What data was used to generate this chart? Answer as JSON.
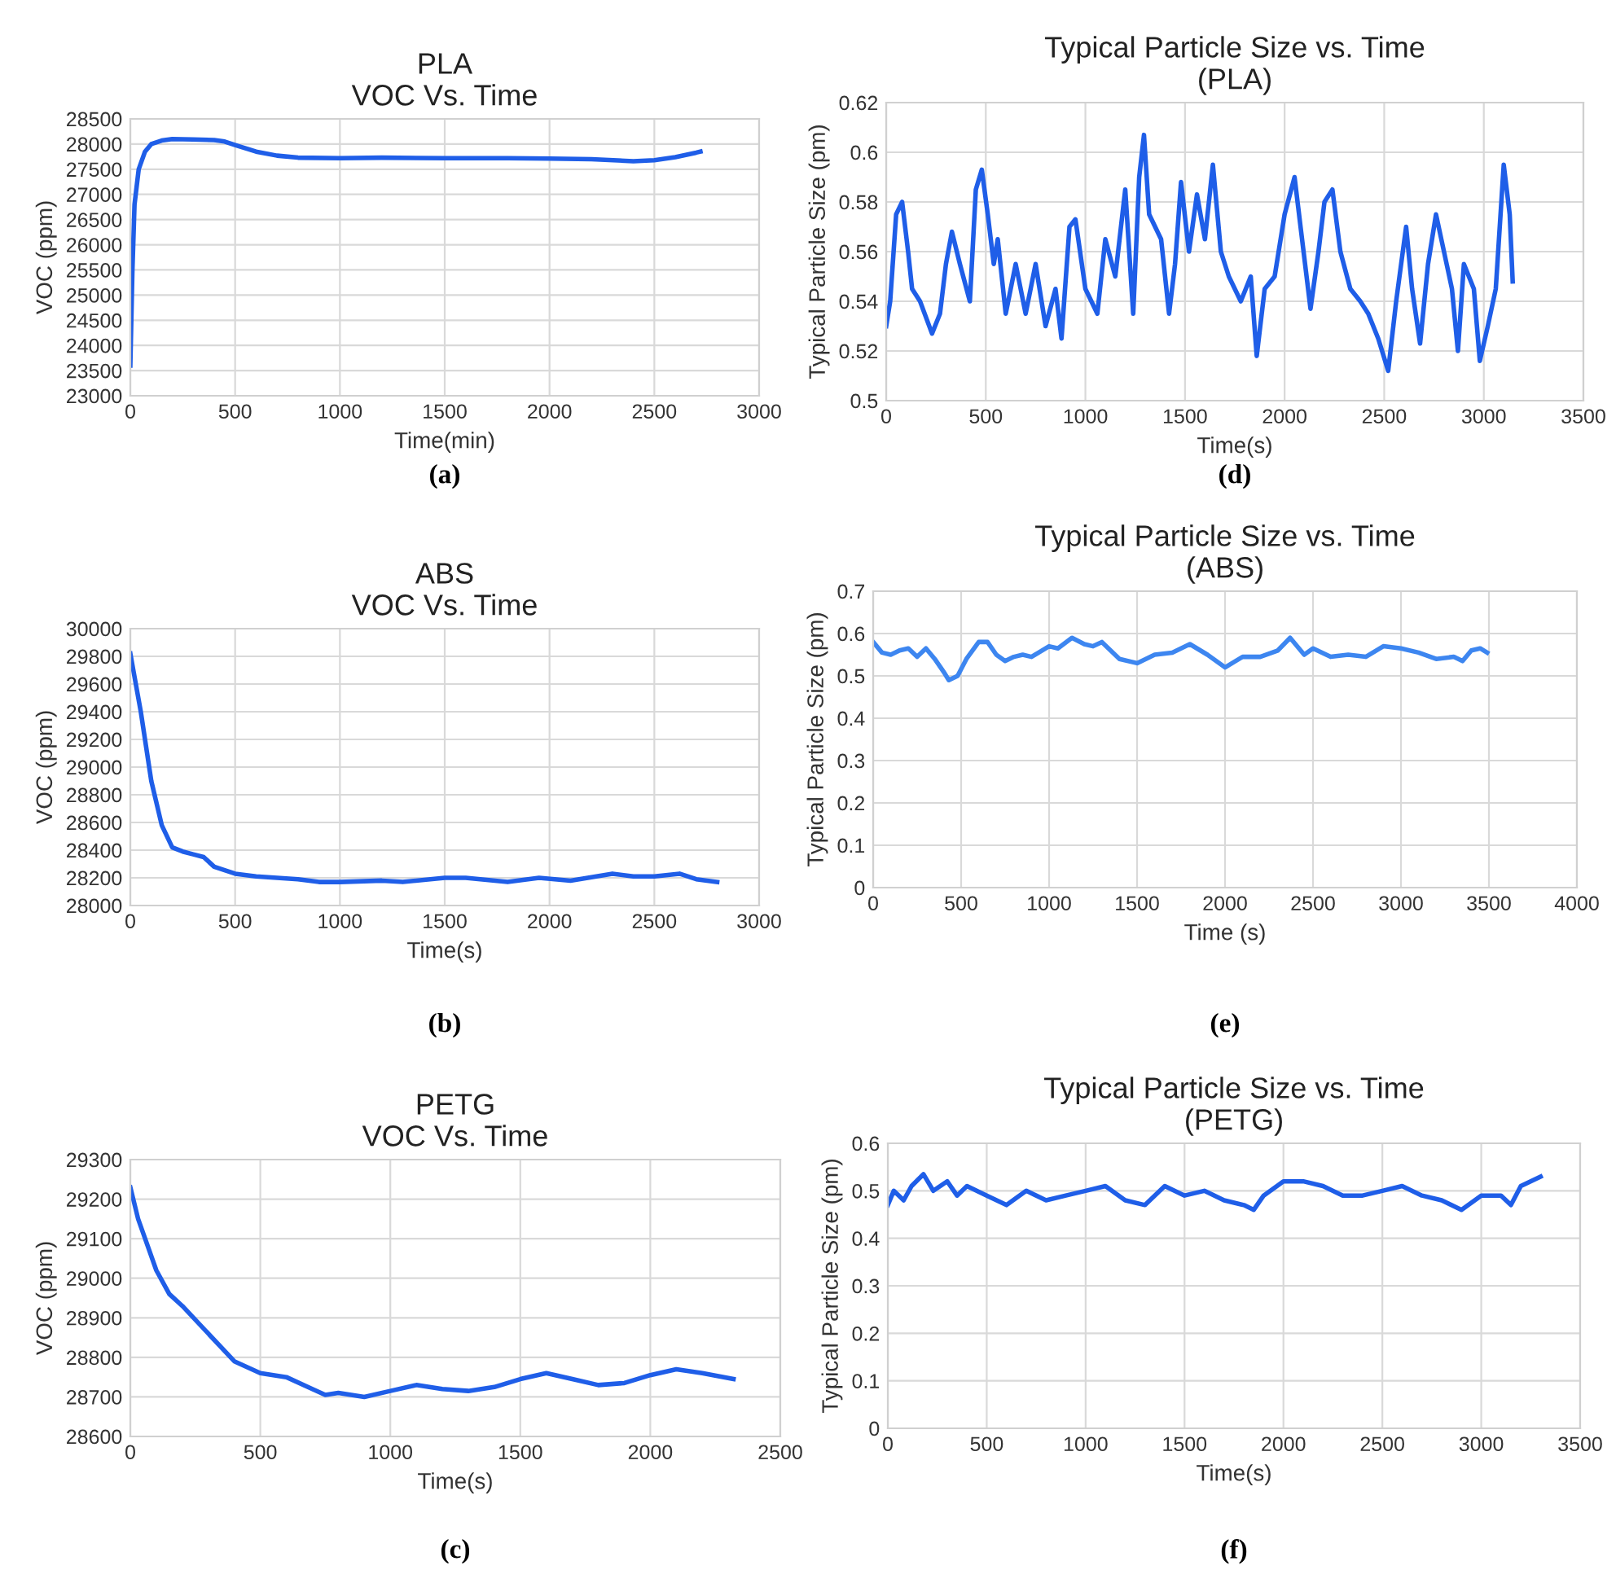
{
  "chart_data": [
    {
      "type": "line",
      "title": "PLA\nVOC Vs. Time",
      "xlabel": "Time(min)",
      "ylabel": "VOC (ppm)",
      "annotations": [
        "(a)"
      ],
      "grid": true,
      "legend": false,
      "marker": "none",
      "line_style": "solid",
      "xlim": [
        0,
        3000
      ],
      "xticks": [
        0,
        500,
        1000,
        1500,
        2000,
        2500,
        3000
      ],
      "ylim": [
        23000,
        28500
      ],
      "yticks": [
        23000,
        23500,
        24000,
        24500,
        25000,
        25500,
        26000,
        26500,
        27000,
        27500,
        28000,
        28500
      ],
      "series": [
        {
          "color": "#1f5ee8",
          "x": [
            0,
            10,
            20,
            40,
            70,
            100,
            150,
            200,
            300,
            400,
            450,
            500,
            600,
            700,
            800,
            1000,
            1200,
            1500,
            1800,
            2000,
            2200,
            2400,
            2500,
            2600,
            2700,
            2720
          ],
          "values": [
            23600,
            25500,
            26800,
            27500,
            27850,
            28000,
            28070,
            28100,
            28090,
            28080,
            28050,
            27980,
            27850,
            27770,
            27730,
            27720,
            27730,
            27720,
            27720,
            27710,
            27700,
            27660,
            27680,
            27740,
            27830,
            27850
          ]
        }
      ]
    },
    {
      "type": "line",
      "title": "Typical Particle Size vs. Time\n(PLA)",
      "xlabel": "Time(s)",
      "ylabel": "Typical Particle Size (pm)",
      "annotations": [
        "(d)"
      ],
      "grid": true,
      "legend": false,
      "marker": "none",
      "line_style": "solid",
      "xlim": [
        0,
        3500
      ],
      "xticks": [
        0,
        500,
        1000,
        1500,
        2000,
        2500,
        3000,
        3500
      ],
      "ylim": [
        0.5,
        0.62
      ],
      "yticks": [
        0.5,
        0.52,
        0.54,
        0.56,
        0.58,
        0.6,
        0.62
      ],
      "series": [
        {
          "color": "#1f5ee8",
          "x": [
            0,
            20,
            50,
            80,
            110,
            130,
            170,
            230,
            270,
            300,
            330,
            370,
            420,
            450,
            480,
            510,
            540,
            560,
            600,
            650,
            700,
            750,
            800,
            850,
            880,
            920,
            950,
            1000,
            1030,
            1060,
            1100,
            1150,
            1200,
            1240,
            1270,
            1294,
            1320,
            1380,
            1420,
            1450,
            1480,
            1520,
            1560,
            1600,
            1640,
            1680,
            1720,
            1780,
            1830,
            1860,
            1900,
            1950,
            2000,
            2050,
            2080,
            2130,
            2170,
            2200,
            2240,
            2280,
            2330,
            2380,
            2420,
            2470,
            2520,
            2560,
            2610,
            2640,
            2680,
            2720,
            2760,
            2800,
            2840,
            2870,
            2900,
            2950,
            2980,
            3020,
            3060,
            3100,
            3130,
            3145
          ],
          "values": [
            0.53,
            0.54,
            0.575,
            0.58,
            0.56,
            0.545,
            0.54,
            0.527,
            0.535,
            0.555,
            0.568,
            0.555,
            0.54,
            0.585,
            0.593,
            0.575,
            0.555,
            0.565,
            0.535,
            0.555,
            0.535,
            0.555,
            0.53,
            0.545,
            0.525,
            0.57,
            0.573,
            0.545,
            0.54,
            0.535,
            0.565,
            0.55,
            0.585,
            0.535,
            0.59,
            0.607,
            0.575,
            0.565,
            0.535,
            0.555,
            0.588,
            0.56,
            0.583,
            0.565,
            0.595,
            0.56,
            0.55,
            0.54,
            0.55,
            0.518,
            0.545,
            0.55,
            0.575,
            0.59,
            0.57,
            0.537,
            0.56,
            0.58,
            0.585,
            0.56,
            0.545,
            0.54,
            0.535,
            0.525,
            0.512,
            0.54,
            0.57,
            0.545,
            0.523,
            0.555,
            0.575,
            0.56,
            0.545,
            0.52,
            0.555,
            0.545,
            0.516,
            0.53,
            0.545,
            0.595,
            0.575,
            0.548
          ]
        }
      ]
    },
    {
      "type": "line",
      "title": "ABS\nVOC Vs. Time",
      "xlabel": "Time(s)",
      "ylabel": "VOC (ppm)",
      "annotations": [
        "(b)"
      ],
      "grid": true,
      "legend": false,
      "marker": "none",
      "line_style": "solid",
      "xlim": [
        0,
        3000
      ],
      "xticks": [
        0,
        500,
        1000,
        1500,
        2000,
        2500,
        3000
      ],
      "ylim": [
        28000,
        30000
      ],
      "yticks": [
        28000,
        28200,
        28400,
        28600,
        28800,
        29000,
        29200,
        29400,
        29600,
        29800,
        30000
      ],
      "series": [
        {
          "color": "#1f5ee8",
          "x": [
            0,
            50,
            100,
            150,
            200,
            250,
            300,
            350,
            400,
            500,
            600,
            700,
            800,
            900,
            1000,
            1200,
            1300,
            1500,
            1600,
            1800,
            1950,
            2100,
            2300,
            2400,
            2500,
            2620,
            2700,
            2800
          ],
          "values": [
            29820,
            29400,
            28900,
            28580,
            28420,
            28390,
            28370,
            28350,
            28280,
            28230,
            28210,
            28200,
            28190,
            28170,
            28170,
            28180,
            28170,
            28200,
            28200,
            28170,
            28200,
            28180,
            28230,
            28210,
            28210,
            28230,
            28190,
            28170
          ]
        }
      ]
    },
    {
      "type": "line",
      "title": "Typical Particle Size vs. Time\n(ABS)",
      "xlabel": "Time (s)",
      "ylabel": "Typical Particle Size (pm)",
      "annotations": [
        "(e)"
      ],
      "grid": true,
      "legend": false,
      "marker": "none",
      "line_style": "solid",
      "xlim": [
        0,
        4000
      ],
      "xticks": [
        0,
        500,
        1000,
        1500,
        2000,
        2500,
        3000,
        3500,
        4000
      ],
      "ylim": [
        0,
        0.7
      ],
      "yticks": [
        0,
        0.1,
        0.2,
        0.3,
        0.4,
        0.5,
        0.6,
        0.7
      ],
      "series": [
        {
          "color": "#3d86f0",
          "x": [
            0,
            50,
            100,
            150,
            200,
            250,
            300,
            350,
            400,
            430,
            480,
            530,
            600,
            650,
            700,
            750,
            800,
            850,
            900,
            1000,
            1050,
            1130,
            1200,
            1250,
            1300,
            1400,
            1500,
            1600,
            1700,
            1800,
            1900,
            2000,
            2100,
            2200,
            2300,
            2370,
            2450,
            2500,
            2600,
            2700,
            2800,
            2900,
            3000,
            3100,
            3200,
            3300,
            3350,
            3400,
            3450,
            3490
          ],
          "values": [
            0.58,
            0.555,
            0.55,
            0.56,
            0.565,
            0.545,
            0.565,
            0.54,
            0.51,
            0.49,
            0.5,
            0.54,
            0.58,
            0.58,
            0.55,
            0.535,
            0.545,
            0.55,
            0.545,
            0.57,
            0.565,
            0.59,
            0.575,
            0.57,
            0.58,
            0.54,
            0.53,
            0.55,
            0.555,
            0.575,
            0.55,
            0.52,
            0.545,
            0.545,
            0.56,
            0.59,
            0.55,
            0.565,
            0.545,
            0.55,
            0.545,
            0.57,
            0.565,
            0.555,
            0.54,
            0.545,
            0.535,
            0.56,
            0.565,
            0.555
          ]
        }
      ]
    },
    {
      "type": "line",
      "title": "PETG\nVOC Vs. Time",
      "xlabel": "Time(s)",
      "ylabel": "VOC (ppm)",
      "annotations": [
        "(c)"
      ],
      "grid": true,
      "legend": false,
      "marker": "none",
      "line_style": "solid",
      "xlim": [
        0,
        2500
      ],
      "xticks": [
        0,
        500,
        1000,
        1500,
        2000,
        2500
      ],
      "ylim": [
        28600,
        29300
      ],
      "yticks": [
        28600,
        28700,
        28800,
        28900,
        29000,
        29100,
        29200,
        29300
      ],
      "series": [
        {
          "color": "#1f5ee8",
          "x": [
            0,
            30,
            100,
            150,
            200,
            300,
            400,
            500,
            600,
            700,
            750,
            800,
            900,
            1000,
            1100,
            1200,
            1300,
            1400,
            1500,
            1600,
            1700,
            1800,
            1900,
            2000,
            2100,
            2200,
            2320
          ],
          "values": [
            29230,
            29150,
            29020,
            28960,
            28930,
            28860,
            28790,
            28760,
            28750,
            28720,
            28705,
            28710,
            28700,
            28715,
            28730,
            28720,
            28715,
            28725,
            28745,
            28760,
            28745,
            28730,
            28735,
            28755,
            28770,
            28760,
            28745
          ]
        }
      ]
    },
    {
      "type": "line",
      "title": "Typical Particle Size vs. Time\n(PETG)",
      "xlabel": "Time(s)",
      "ylabel": "Typical Particle Size (pm)",
      "annotations": [
        "(f)"
      ],
      "grid": true,
      "legend": false,
      "marker": "none",
      "line_style": "solid",
      "xlim": [
        0,
        3500
      ],
      "xticks": [
        0,
        500,
        1000,
        1500,
        2000,
        2500,
        3000,
        3500
      ],
      "ylim": [
        0,
        0.6
      ],
      "yticks": [
        0,
        0.1,
        0.2,
        0.3,
        0.4,
        0.5,
        0.6
      ],
      "series": [
        {
          "color": "#1f5ee8",
          "x": [
            0,
            30,
            80,
            120,
            180,
            230,
            300,
            350,
            400,
            500,
            600,
            700,
            800,
            900,
            1000,
            1100,
            1200,
            1300,
            1400,
            1500,
            1600,
            1700,
            1800,
            1850,
            1900,
            2000,
            2100,
            2200,
            2300,
            2400,
            2500,
            2600,
            2700,
            2800,
            2900,
            3000,
            3100,
            3150,
            3200,
            3300
          ],
          "values": [
            0.47,
            0.5,
            0.48,
            0.51,
            0.535,
            0.5,
            0.52,
            0.49,
            0.51,
            0.49,
            0.47,
            0.5,
            0.48,
            0.49,
            0.5,
            0.51,
            0.48,
            0.47,
            0.51,
            0.49,
            0.5,
            0.48,
            0.47,
            0.46,
            0.49,
            0.52,
            0.52,
            0.51,
            0.49,
            0.49,
            0.5,
            0.51,
            0.49,
            0.48,
            0.46,
            0.49,
            0.49,
            0.47,
            0.51,
            0.53
          ]
        }
      ]
    }
  ]
}
